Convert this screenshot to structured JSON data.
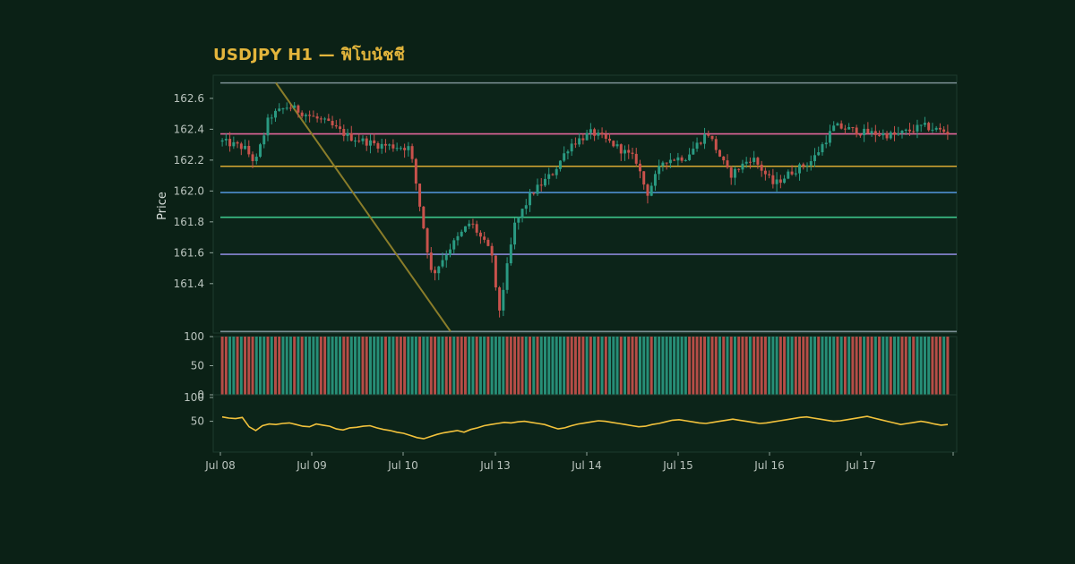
{
  "chart_data": {
    "type": "candlestick",
    "title": "USDJPY H1 — ฟิโบนัชชี",
    "symbol": "USDJPY",
    "timeframe": "H1",
    "ylabel": "Price",
    "ylim": [
      161.08,
      162.75
    ],
    "yticks": [
      161.4,
      161.6,
      161.8,
      162.0,
      162.2,
      162.4,
      162.6
    ],
    "xticks": [
      "Jul 08",
      "Jul 09",
      "Jul 10",
      "Jul 13",
      "Jul 14",
      "Jul 15",
      "Jul 16",
      "Jul 17"
    ],
    "grid": false,
    "candle_count": 192,
    "fib_levels": [
      {
        "ratio": 0.0,
        "price": 162.7,
        "color": "#7b8f94"
      },
      {
        "ratio": 0.236,
        "price": 162.37,
        "color": "#e0669a"
      },
      {
        "ratio": 0.382,
        "price": 162.16,
        "color": "#d9a932"
      },
      {
        "ratio": 0.5,
        "price": 161.99,
        "color": "#4f8fd0"
      },
      {
        "ratio": 0.618,
        "price": 161.83,
        "color": "#3cc48a"
      },
      {
        "ratio": 0.786,
        "price": 161.59,
        "color": "#8a86d6"
      },
      {
        "ratio": 1.0,
        "price": 161.09,
        "color": "#7b8f94"
      }
    ],
    "trendline": {
      "from": {
        "date": "Jul 08",
        "price": 162.7
      },
      "to": {
        "date": "Jul 10",
        "price": 161.09
      },
      "color": "#8a7d2a"
    },
    "price_path": [
      [
        0,
        162.32
      ],
      [
        8,
        162.28
      ],
      [
        12,
        162.18
      ],
      [
        17,
        162.48
      ],
      [
        24,
        162.55
      ],
      [
        30,
        162.5
      ],
      [
        38,
        162.44
      ],
      [
        46,
        162.35
      ],
      [
        56,
        162.3
      ],
      [
        68,
        162.28
      ],
      [
        76,
        161.45
      ],
      [
        82,
        161.62
      ],
      [
        90,
        161.8
      ],
      [
        98,
        161.58
      ],
      [
        100,
        161.18
      ],
      [
        106,
        161.78
      ],
      [
        112,
        161.98
      ],
      [
        120,
        162.12
      ],
      [
        126,
        162.3
      ],
      [
        134,
        162.38
      ],
      [
        142,
        162.3
      ],
      [
        150,
        162.2
      ],
      [
        154,
        161.98
      ],
      [
        160,
        162.2
      ],
      [
        168,
        162.22
      ],
      [
        176,
        162.38
      ],
      [
        184,
        162.1
      ],
      [
        192,
        162.22
      ],
      [
        200,
        162.04
      ],
      [
        206,
        162.12
      ],
      [
        214,
        162.2
      ],
      [
        222,
        162.42
      ],
      [
        232,
        162.38
      ],
      [
        244,
        162.36
      ],
      [
        254,
        162.42
      ],
      [
        263,
        162.38
      ]
    ],
    "panels": [
      {
        "name": "oscillator-1",
        "type": "bar",
        "ylim": [
          0,
          100
        ],
        "yticks": [
          0,
          50,
          100
        ],
        "colors": {
          "up": "#2a9a82",
          "down": "#c9524c"
        }
      },
      {
        "name": "oscillator-2",
        "type": "line",
        "ylim": [
          0,
          100
        ],
        "yticks": [
          50,
          100
        ],
        "color": "#f2c23c",
        "values": [
          58,
          56,
          55,
          57,
          40,
          33,
          42,
          45,
          44,
          46,
          47,
          44,
          41,
          40,
          45,
          43,
          41,
          36,
          34,
          38,
          39,
          41,
          42,
          38,
          35,
          33,
          30,
          28,
          24,
          20,
          18,
          22,
          26,
          29,
          31,
          33,
          30,
          35,
          38,
          42,
          44,
          46,
          48,
          47,
          49,
          50,
          48,
          46,
          44,
          40,
          36,
          38,
          42,
          45,
          47,
          49,
          51,
          50,
          48,
          46,
          44,
          42,
          40,
          41,
          44,
          46,
          49,
          52,
          53,
          51,
          49,
          47,
          46,
          48,
          50,
          52,
          54,
          52,
          50,
          48,
          46,
          47,
          49,
          51,
          53,
          55,
          57,
          58,
          56,
          54,
          52,
          50,
          51,
          53,
          55,
          57,
          59,
          56,
          53,
          50,
          47,
          44,
          46,
          48,
          50,
          48,
          45,
          43,
          44
        ]
      }
    ]
  }
}
